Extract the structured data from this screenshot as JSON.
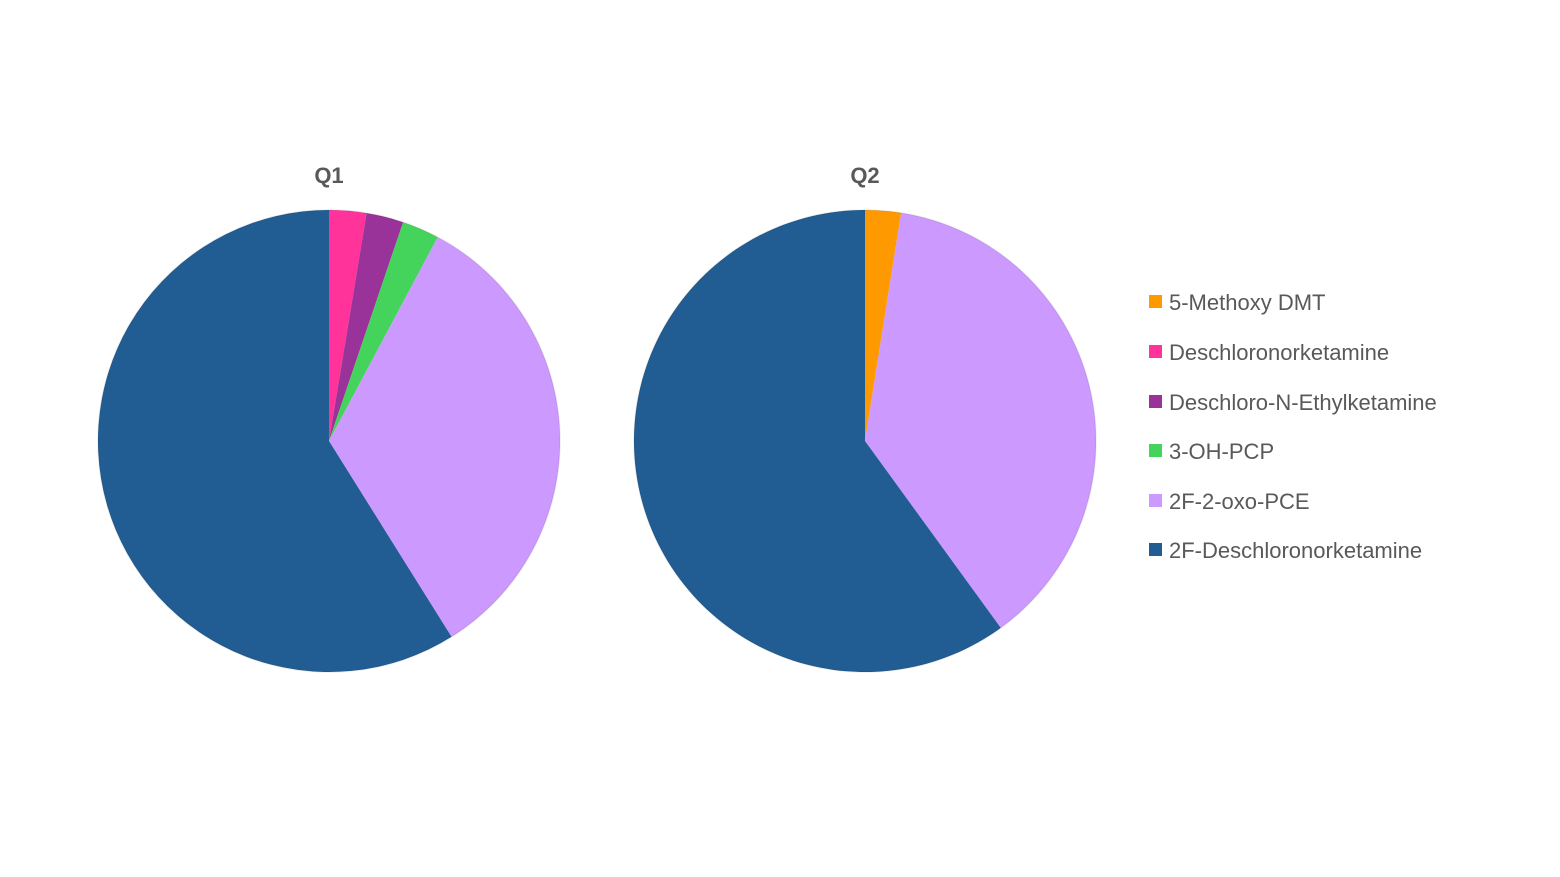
{
  "chart_data": [
    {
      "type": "pie",
      "title": "Q1",
      "start_angle_deg": 0,
      "direction": "clockwise",
      "categories": [
        "5-Methoxy DMT",
        "Deschloronorketamine",
        "Deschloro-N-Ethylketamine",
        "3-OH-PCP",
        "2F-2-oxo-PCE",
        "2F-Deschloronorketamine"
      ],
      "values": [
        0,
        2.6,
        2.6,
        2.6,
        33.3,
        58.9
      ]
    },
    {
      "type": "pie",
      "title": "Q2",
      "start_angle_deg": 0,
      "direction": "clockwise",
      "categories": [
        "5-Methoxy DMT",
        "Deschloronorketamine",
        "Deschloro-N-Ethylketamine",
        "3-OH-PCP",
        "2F-2-oxo-PCE",
        "2F-Deschloronorketamine"
      ],
      "values": [
        2.5,
        0,
        0,
        0,
        37.5,
        60.0
      ]
    }
  ],
  "legend": {
    "placement": "right",
    "items": [
      {
        "label": "5-Methoxy DMT",
        "color": "#FF9900"
      },
      {
        "label": "Deschloronorketamine",
        "color": "#FF3399"
      },
      {
        "label": "Deschloro-N-Ethylketamine",
        "color": "#993399"
      },
      {
        "label": "3-OH-PCP",
        "color": "#44D45C"
      },
      {
        "label": "2F-2-oxo-PCE",
        "color": "#CC99FF"
      },
      {
        "label": "2F-Deschloronorketamine",
        "color": "#215D92"
      }
    ]
  }
}
